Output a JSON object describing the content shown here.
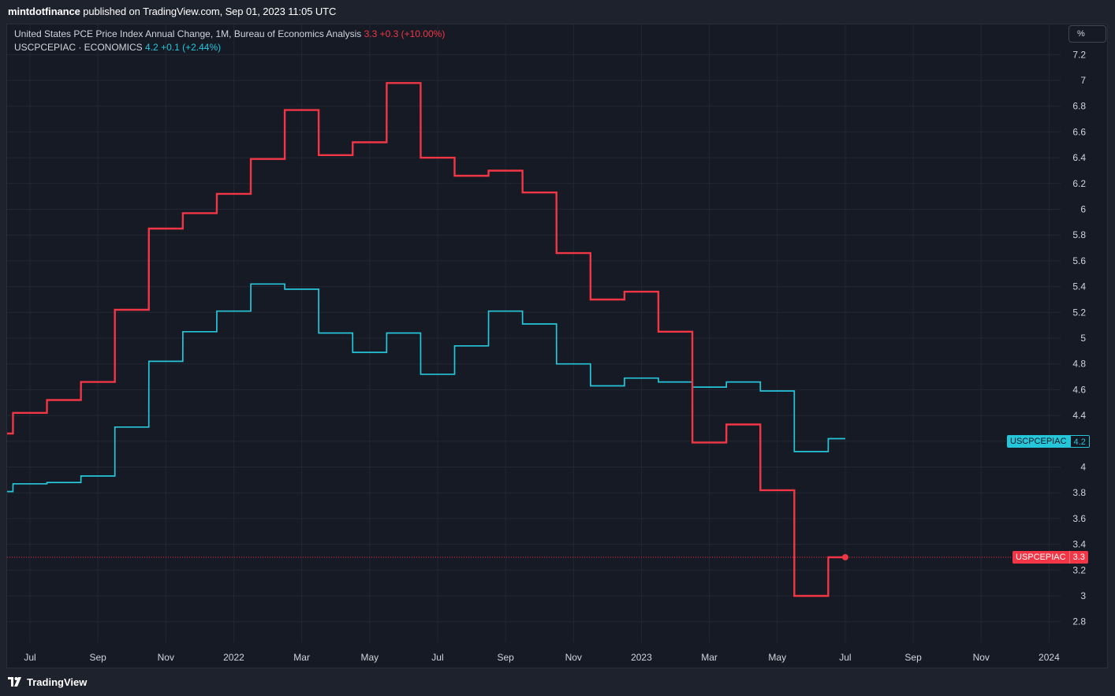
{
  "header": {
    "author": "mintdotfinance",
    "published_text": "published on TradingView.com, Sep 01, 2023 11:05 UTC"
  },
  "legend": {
    "main_title": "United States PCE Price Index Annual Change, 1M, Bureau of Economics Analysis",
    "main_value": "3.3",
    "main_change": "+0.3 (+10.00%)",
    "second_title": "USCPCEPIAC · ECONOMICS",
    "second_value": "4.2",
    "second_change": "+0.1 (+2.44%)"
  },
  "unit_button": "%",
  "footer": {
    "brand": "TradingView"
  },
  "colors": {
    "red": "#f23645",
    "teal": "#26c6da",
    "bg": "#161a25",
    "grid": "#232733"
  },
  "tags": {
    "teal": {
      "name": "USCPCEPIAC",
      "value": "4.2"
    },
    "red": {
      "name": "USPCEPIAC",
      "value": "3.3"
    }
  },
  "chart_data": {
    "type": "line",
    "step": true,
    "x_ticks": [
      "Jul",
      "Sep",
      "Nov",
      "2022",
      "Mar",
      "May",
      "Jul",
      "Sep",
      "Nov",
      "2023",
      "Mar",
      "May",
      "Jul",
      "Sep",
      "Nov",
      "2024"
    ],
    "y_ticks": [
      "7.2",
      "7",
      "6.8",
      "6.6",
      "6.4",
      "6.2",
      "6",
      "5.8",
      "5.6",
      "5.4",
      "5.2",
      "5",
      "4.8",
      "4.6",
      "4.4",
      "4.2",
      "4",
      "3.8",
      "3.6",
      "3.4",
      "3.2",
      "3",
      "2.8"
    ],
    "ylim": [
      2.7,
      7.4
    ],
    "series": [
      {
        "name": "USPCEPIAC",
        "color": "#f23645",
        "x": [
          "2021-06",
          "2021-07",
          "2021-08",
          "2021-09",
          "2021-10",
          "2021-11",
          "2021-12",
          "2022-01",
          "2022-02",
          "2022-03",
          "2022-04",
          "2022-05",
          "2022-06",
          "2022-07",
          "2022-08",
          "2022-09",
          "2022-10",
          "2022-11",
          "2022-12",
          "2023-01",
          "2023-02",
          "2023-03",
          "2023-04",
          "2023-05",
          "2023-06",
          "2023-07"
        ],
        "values": [
          4.26,
          4.42,
          4.52,
          4.66,
          5.22,
          5.85,
          5.97,
          6.12,
          6.39,
          6.77,
          6.42,
          6.52,
          6.98,
          6.4,
          6.26,
          6.3,
          6.13,
          5.66,
          5.3,
          5.36,
          5.05,
          4.19,
          4.33,
          3.82,
          3.0,
          3.3
        ]
      },
      {
        "name": "USCPCEPIAC",
        "color": "#26c6da",
        "x": [
          "2021-06",
          "2021-07",
          "2021-08",
          "2021-09",
          "2021-10",
          "2021-11",
          "2021-12",
          "2022-01",
          "2022-02",
          "2022-03",
          "2022-04",
          "2022-05",
          "2022-06",
          "2022-07",
          "2022-08",
          "2022-09",
          "2022-10",
          "2022-11",
          "2022-12",
          "2023-01",
          "2023-02",
          "2023-03",
          "2023-04",
          "2023-05",
          "2023-06",
          "2023-07"
        ],
        "values": [
          3.81,
          3.87,
          3.88,
          3.93,
          4.31,
          4.82,
          5.05,
          5.21,
          5.42,
          5.38,
          5.04,
          4.89,
          5.04,
          4.72,
          4.94,
          5.21,
          5.11,
          4.8,
          4.63,
          4.69,
          4.66,
          4.62,
          4.66,
          4.59,
          4.12,
          4.22
        ]
      }
    ]
  }
}
